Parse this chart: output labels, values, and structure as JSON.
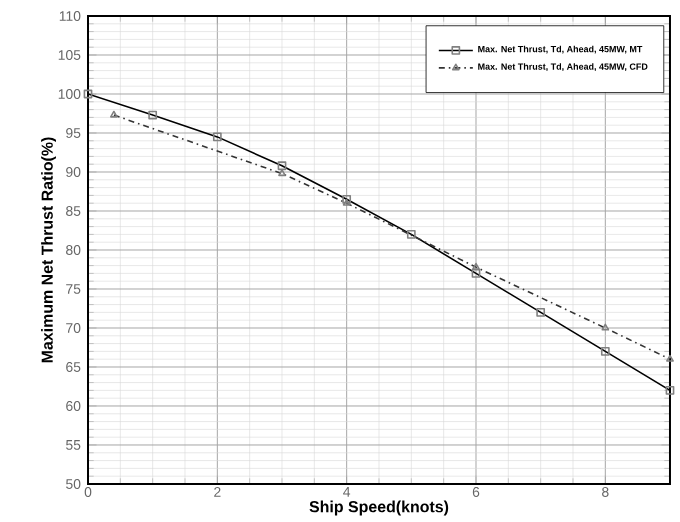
{
  "chart_data": {
    "type": "line",
    "xlabel": "Ship Speed(knots)",
    "ylabel": "Maximum Net Thrust Ratio(%)",
    "xlim": [
      0,
      9
    ],
    "ylim": [
      50,
      110
    ],
    "xticks": [
      0,
      2,
      4,
      6,
      8
    ],
    "yticks": [
      50,
      55,
      60,
      65,
      70,
      75,
      80,
      85,
      90,
      95,
      100,
      105,
      110
    ],
    "grid": true,
    "legend": "top right",
    "series": [
      {
        "name": "Max. Net Thrust, Td, Ahead, 45MW, MT",
        "color": "#000000",
        "marker": "square",
        "line_style": "solid",
        "x": [
          0,
          1,
          2,
          3,
          4,
          5,
          6,
          7,
          8,
          9
        ],
        "values": [
          100,
          97.3,
          94.5,
          90.8,
          86.5,
          82,
          77,
          72,
          67,
          62
        ]
      },
      {
        "name": "Max. Net Thrust, Td, Ahead, 45MW, CFD",
        "color": "#333333",
        "marker": "triangle",
        "line_style": "dashdotted",
        "x": [
          0.4,
          3,
          4,
          6,
          8,
          9
        ],
        "values": [
          97.3,
          89.8,
          86,
          77.8,
          70,
          66
        ]
      }
    ]
  }
}
